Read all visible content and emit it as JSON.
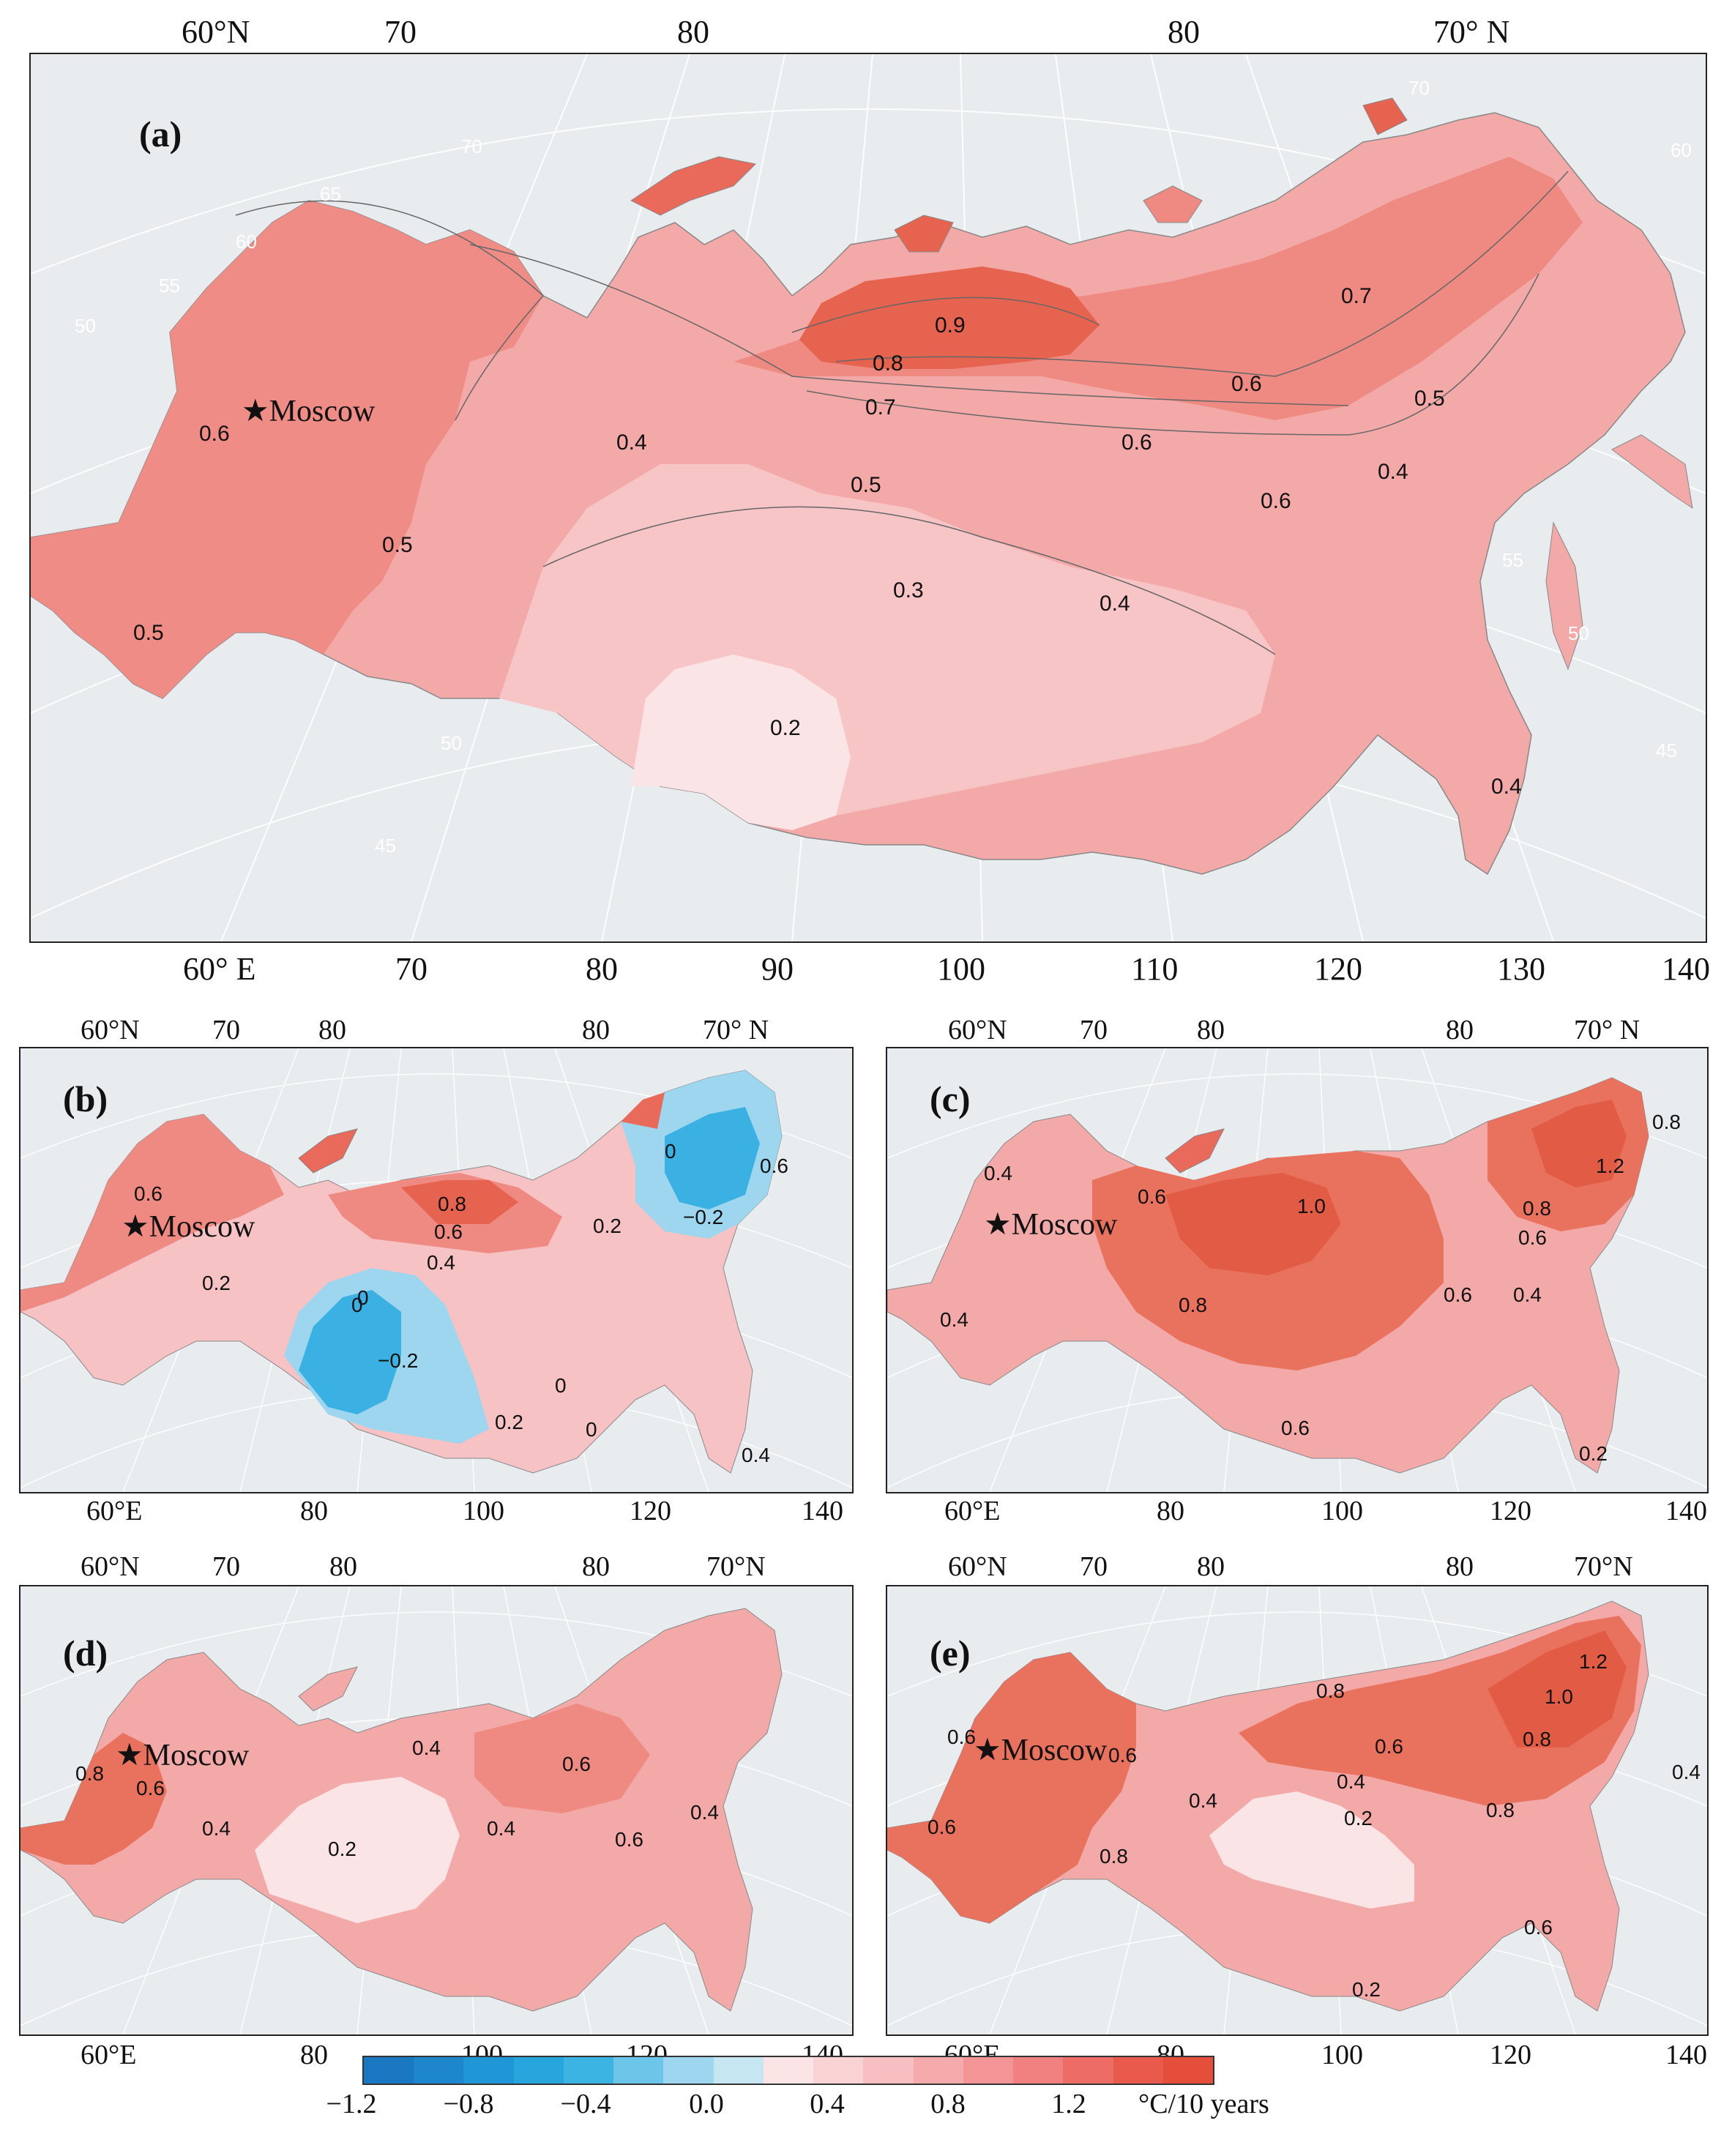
{
  "panels": {
    "a": {
      "letter": "(a)",
      "top_labels": [
        "60°N",
        "70",
        "80",
        "80",
        "70° N"
      ],
      "bottom_labels": [
        "60° E",
        "70",
        "80",
        "90",
        "100",
        "110",
        "120",
        "130",
        "140"
      ],
      "city": "★Moscow",
      "contours": [
        "0.9",
        "0.8",
        "0.7",
        "0.7",
        "0.6",
        "0.6",
        "0.6",
        "0.6",
        "0.5",
        "0.5",
        "0.5",
        "0.5",
        "0.4",
        "0.4",
        "0.4",
        "0.4",
        "0.3",
        "0.2"
      ],
      "grid_labels": [
        "70",
        "65",
        "60",
        "55",
        "50",
        "70",
        "60",
        "55",
        "50",
        "45",
        "50",
        "45"
      ]
    },
    "b": {
      "letter": "(b)",
      "top_labels": [
        "60°N",
        "70",
        "80",
        "80",
        "70° N"
      ],
      "bottom_labels": [
        "60°E",
        "80",
        "100",
        "120",
        "140"
      ],
      "city": "★Moscow",
      "contours": [
        "0.6",
        "0.8",
        "0.6",
        "0.4",
        "0.2",
        "0.2",
        "0",
        "0",
        "0.6",
        "−0.2",
        "0",
        "−0.2",
        "0",
        "0.2",
        "0",
        "0.4"
      ]
    },
    "c": {
      "letter": "(c)",
      "top_labels": [
        "60°N",
        "70",
        "80",
        "80",
        "70° N"
      ],
      "bottom_labels": [
        "60°E",
        "80",
        "100",
        "120",
        "140"
      ],
      "city": "★Moscow",
      "contours": [
        "0.4",
        "0.6",
        "1.0",
        "0.8",
        "1.2",
        "0.8",
        "0.6",
        "0.4",
        "0.6",
        "0.8",
        "0.6",
        "0.4",
        "0.2"
      ]
    },
    "d": {
      "letter": "(d)",
      "top_labels": [
        "60°N",
        "70",
        "80",
        "80",
        "70°N"
      ],
      "bottom_labels": [
        "60°E",
        "80",
        "100",
        "120",
        "140"
      ],
      "city": "★Moscow",
      "contours": [
        "0.8",
        "0.6",
        "0.4",
        "0.4",
        "0.6",
        "0.4",
        "0.6",
        "0.2",
        "0.4"
      ]
    },
    "e": {
      "letter": "(e)",
      "top_labels": [
        "60°N",
        "70",
        "80",
        "80",
        "70°N"
      ],
      "bottom_labels": [
        "60°E",
        "80",
        "100",
        "120",
        "140"
      ],
      "city": "★Moscow",
      "contours": [
        "0.6",
        "0.6",
        "0.6",
        "0.8",
        "0.4",
        "0.8",
        "0.6",
        "0.4",
        "0.2",
        "1.0",
        "1.2",
        "0.8",
        "0.8",
        "0.4",
        "0.6",
        "0.2"
      ]
    }
  },
  "colorbar": {
    "ticks": [
      "−1.2",
      "−0.8",
      "−0.4",
      "0.0",
      "0.4",
      "0.8",
      "1.2"
    ],
    "unit": "°C/10 years",
    "colors": [
      "#1a78c2",
      "#1d86cc",
      "#1f96d6",
      "#27a6de",
      "#3bb4e4",
      "#6cc6ea",
      "#9dd6ee",
      "#c6e6f2",
      "#fbe4e6",
      "#f9d2d4",
      "#f7bfc1",
      "#f5aaac",
      "#f39597",
      "#f18080",
      "#ee6c66",
      "#ea5a4c",
      "#e54e3a"
    ]
  },
  "colors": {
    "ocean": "#e9ecef",
    "land_low": "#f8d7d9",
    "land_mid": "#f4a9a9",
    "land_high": "#eb7a72",
    "land_max": "#e25b45",
    "cold": "#3bb0e2"
  }
}
